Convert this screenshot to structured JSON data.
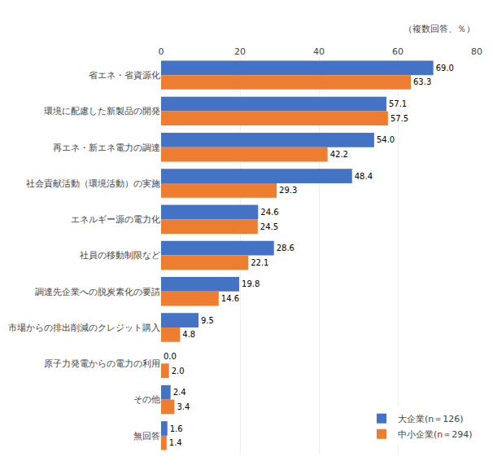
{
  "chart_data": {
    "type": "bar",
    "orientation": "horizontal",
    "categories": [
      "省エネ・省資源化",
      "環境に配慮した新製品の開発",
      "再エネ・新エネ電力の調達",
      "社会貢献活動（環境活動）の実施",
      "エネルギー源の電力化",
      "社員の移動制限など",
      "調達先企業への脱炭素化の要請",
      "市場からの排出削減のクレジット購入",
      "原子力発電からの電力の利用",
      "その他",
      "無回答"
    ],
    "series": [
      {
        "name": "大企業(n＝126)",
        "color": "#4472C4",
        "values": [
          69.0,
          57.1,
          54.0,
          48.4,
          24.6,
          28.6,
          19.8,
          9.5,
          0.0,
          2.4,
          1.6
        ],
        "value_labels": [
          "69.0",
          "57.1",
          "54.0",
          "48.4",
          "24.6",
          "28.6",
          "19.8",
          "9.5",
          "0.0",
          "2.4",
          "1.6"
        ]
      },
      {
        "name": "中小企業(n＝294)",
        "color": "#ED7D31",
        "values": [
          63.3,
          57.5,
          42.2,
          29.3,
          24.5,
          22.1,
          14.6,
          4.8,
          2.0,
          3.4,
          1.4
        ],
        "value_labels": [
          "63.3",
          "57.5",
          "42.2",
          "29.3",
          "24.5",
          "22.1",
          "14.6",
          "4.8",
          "2.0",
          "3.4",
          "1.4"
        ]
      }
    ],
    "xlim": [
      0,
      80
    ],
    "xticks": [
      0,
      20,
      40,
      60,
      80
    ],
    "annotations": [
      "（複数回答、％）"
    ],
    "grid": true,
    "legend": "lower right",
    "data_labels": true
  }
}
